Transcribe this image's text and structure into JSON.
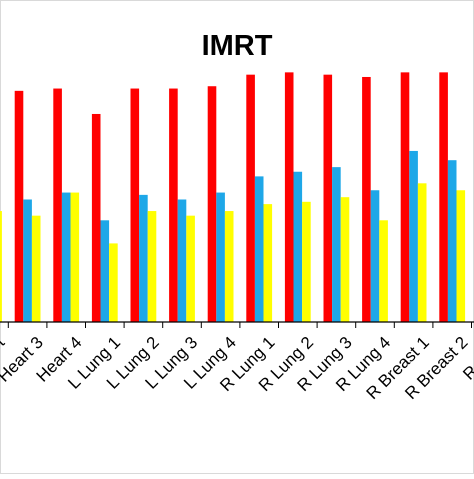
{
  "chart_data": {
    "type": "bar",
    "title": "IMRT",
    "categories": [
      "t",
      "Heart 3",
      "Heart 4",
      "L Lung 1",
      "L Lung 2",
      "L Lung 3",
      "L Lung 4",
      "R Lung 1",
      "R Lung 2",
      "R Lung 3",
      "R Lung 4",
      "R Breast 1",
      "R Breast 2",
      "R Brea"
    ],
    "series": [
      {
        "color": "#ff0000",
        "values": [
          null,
          100,
          101,
          90,
          101,
          101,
          102,
          107,
          108,
          107,
          106,
          108,
          108,
          null
        ]
      },
      {
        "color": "#1ea7e8",
        "values": [
          59,
          53,
          56,
          44,
          55,
          53,
          56,
          63,
          65,
          67,
          57,
          74,
          70,
          null
        ]
      },
      {
        "color": "#ffff00",
        "values": [
          48,
          46,
          56,
          34,
          48,
          46,
          48,
          51,
          52,
          54,
          44,
          60,
          57,
          null
        ]
      }
    ],
    "ylim": [
      0,
      122
    ],
    "grid": false,
    "legend": "none",
    "xlabel": "",
    "ylabel": ""
  }
}
